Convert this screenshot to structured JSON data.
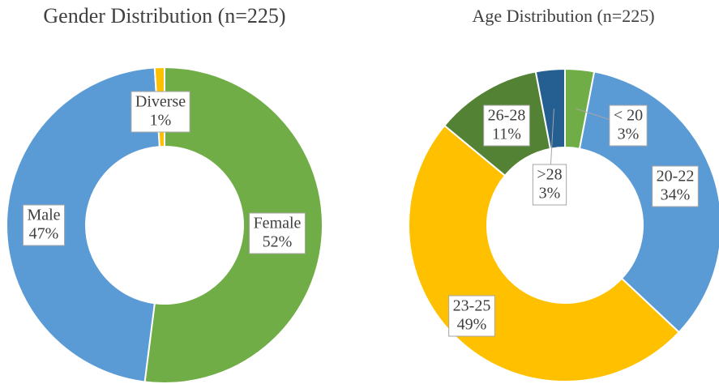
{
  "chart_data": [
    {
      "type": "donut",
      "title": "Gender Distribution (n=225)",
      "categories": [
        "Female",
        "Male",
        "Diverse"
      ],
      "values": [
        52,
        47,
        1
      ],
      "value_labels": [
        "52%",
        "47%",
        "1%"
      ],
      "colors": [
        "#70ad47",
        "#5b9bd5",
        "#ffc000"
      ]
    },
    {
      "type": "donut",
      "title": "Age Distribution (n=225)",
      "categories": [
        "< 20",
        "20-22",
        "23-25",
        "26-28",
        ">28"
      ],
      "values": [
        3,
        34,
        49,
        11,
        3
      ],
      "value_labels": [
        "3%",
        "34%",
        "49%",
        "11%",
        "3%"
      ],
      "colors": [
        "#70ad47",
        "#5b9bd5",
        "#ffc000",
        "#548235",
        "#255e91"
      ]
    }
  ]
}
